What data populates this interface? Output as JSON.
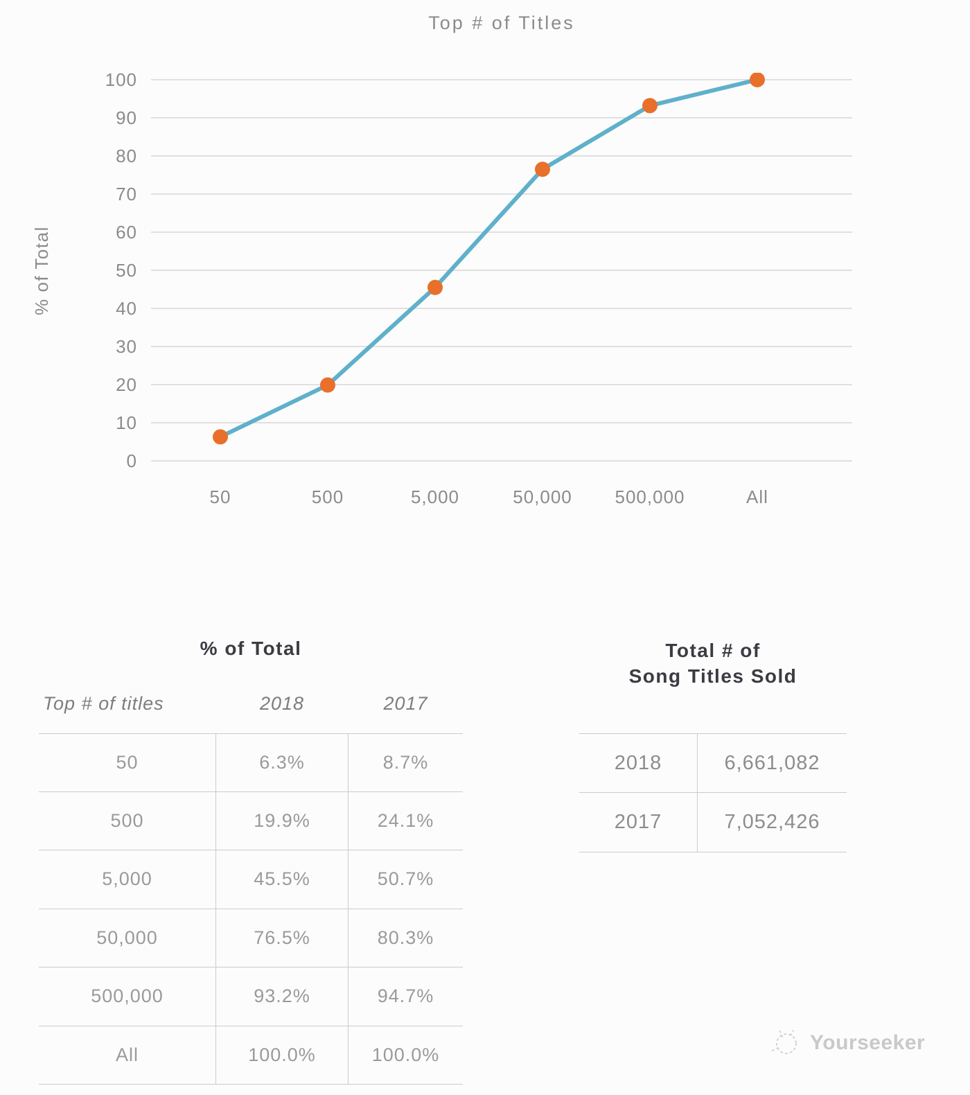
{
  "chart": {
    "title": "Top # of Titles",
    "y_axis_title": "% of Total"
  },
  "chart_data": {
    "type": "line",
    "title": "Top # of Titles",
    "categories": [
      "50",
      "500",
      "5,000",
      "50,000",
      "500,000",
      "All"
    ],
    "series": [
      {
        "name": "2018",
        "values": [
          6.3,
          19.9,
          45.5,
          76.5,
          93.2,
          100.0
        ]
      }
    ],
    "xlabel": "",
    "ylabel": "% of Total",
    "ylim": [
      0,
      100
    ],
    "y_ticks": [
      0,
      10,
      20,
      30,
      40,
      50,
      60,
      70,
      80,
      90,
      100
    ],
    "grid": true,
    "legend": "none",
    "colors": {
      "line": "#5fb0cb",
      "marker": "#e8702b",
      "grid": "#d6d6d6"
    }
  },
  "percent_table": {
    "title": "% of Total",
    "columns": [
      "Top # of titles",
      "2018",
      "2017"
    ],
    "rows": [
      [
        "50",
        "6.3%",
        "8.7%"
      ],
      [
        "500",
        "19.9%",
        "24.1%"
      ],
      [
        "5,000",
        "45.5%",
        "50.7%"
      ],
      [
        "50,000",
        "76.5%",
        "80.3%"
      ],
      [
        "500,000",
        "93.2%",
        "94.7%"
      ],
      [
        "All",
        "100.0%",
        "100.0%"
      ]
    ]
  },
  "totals_table": {
    "title": [
      "Total # of",
      "Song Titles Sold"
    ],
    "rows": [
      [
        "2018",
        "6,661,082"
      ],
      [
        "2017",
        "7,052,426"
      ]
    ]
  },
  "watermark": {
    "text": "Yourseeker"
  }
}
